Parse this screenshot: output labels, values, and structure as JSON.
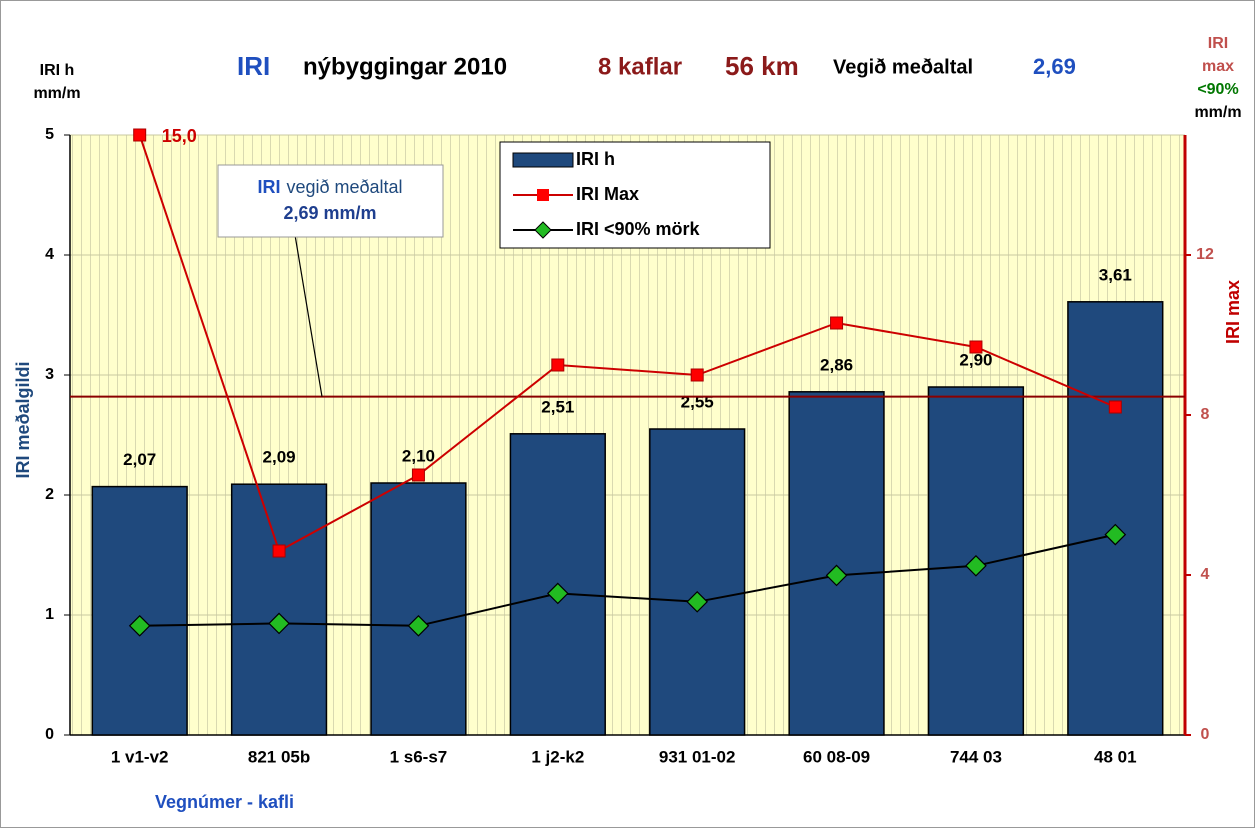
{
  "chart_data": {
    "type": "bar",
    "title_parts": [
      "IRI",
      "nýbyggingar 2010",
      "8 kaflar",
      "56 km",
      "Vegið meðaltal",
      "2,69"
    ],
    "y_axis_top_label": [
      "IRI h",
      "mm/m"
    ],
    "y_axis_label": "IRI meðalgildi",
    "y2_axis_top_label": [
      "IRI",
      "max",
      "<90%",
      "mm/m"
    ],
    "y2_axis_label": "IRI  max",
    "x_axis_label": "Vegnúmer - kafli",
    "annotation": [
      "IRI",
      "vegið meðaltal",
      "2,69 mm/m"
    ],
    "reference_line": 2.82,
    "categories": [
      "1 v1-v2",
      "821 05b",
      "1 s6-s7",
      "1 j2-k2",
      "931 01-02",
      "60 08-09",
      "744 03",
      "48 01"
    ],
    "series": [
      {
        "name": "IRI h",
        "type": "bar",
        "color": "#1f497d",
        "values": [
          2.07,
          2.09,
          2.1,
          2.51,
          2.55,
          2.86,
          2.9,
          3.61
        ],
        "value_labels": [
          "2,07",
          "2,09",
          "2,10",
          "2,51",
          "2,55",
          "2,86",
          "2,90",
          "3,61"
        ]
      },
      {
        "name": "IRI Max",
        "type": "line",
        "axis": "y2",
        "color": "#cc0000",
        "values": [
          15.0,
          4.6,
          6.5,
          9.25,
          9.0,
          10.3,
          9.7,
          8.2
        ],
        "value_labels": [
          "15,0",
          null,
          null,
          null,
          null,
          null,
          null,
          null
        ]
      },
      {
        "name": "IRI <90% mörk",
        "type": "line",
        "color": "#000000",
        "marker_color": "#22bb22",
        "values": [
          0.91,
          0.93,
          0.91,
          1.18,
          1.11,
          1.33,
          1.41,
          1.67
        ]
      }
    ],
    "ylim": [
      0,
      5
    ],
    "yticks": [
      0,
      1,
      2,
      3,
      4,
      5
    ],
    "y2lim": [
      0,
      15
    ],
    "y2ticks": [
      0,
      4,
      8,
      12
    ],
    "grid": true
  }
}
